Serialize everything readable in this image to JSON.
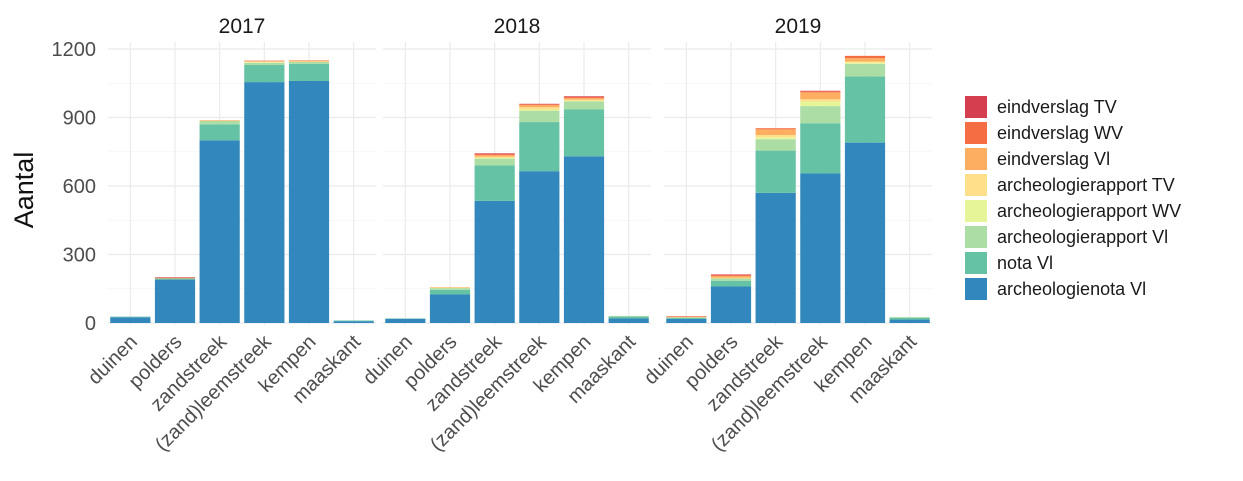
{
  "chart_data": {
    "type": "bar",
    "stacked": true,
    "ylabel": "Aantal",
    "xlabel": "",
    "ylim": [
      0,
      1200
    ],
    "yticks": [
      0,
      300,
      600,
      900,
      1200
    ],
    "grid": true,
    "legend_position": "right",
    "categories": [
      "duinen",
      "polders",
      "zandstreek",
      "(zand)leemstreek",
      "kempen",
      "maaskant"
    ],
    "stack_order": [
      "archeologienota Vl",
      "nota Vl",
      "archeologierapport Vl",
      "archeologierapport WV",
      "archeologierapport TV",
      "eindverslag Vl",
      "eindverslag WV",
      "eindverslag TV"
    ],
    "legend_labels": [
      "eindverslag TV",
      "eindverslag WV",
      "eindverslag Vl",
      "archeologierapport TV",
      "archeologierapport WV",
      "archeologierapport Vl",
      "nota Vl",
      "archeologienota Vl"
    ],
    "colors": {
      "archeologienota Vl": "#3288bd",
      "nota Vl": "#66c2a5",
      "archeologierapport Vl": "#abdda4",
      "archeologierapport WV": "#e6f598",
      "archeologierapport TV": "#fee08b",
      "eindverslag Vl": "#fdae61",
      "eindverslag WV": "#f46d43",
      "eindverslag TV": "#d53e4f"
    },
    "panels": [
      {
        "title": "2017",
        "series": [
          {
            "name": "archeologienota Vl",
            "values": [
              25,
              190,
              800,
              1055,
              1060,
              8
            ]
          },
          {
            "name": "nota Vl",
            "values": [
              3,
              5,
              70,
              75,
              75,
              3
            ]
          },
          {
            "name": "archeologierapport Vl",
            "values": [
              0,
              0,
              15,
              10,
              8,
              0
            ]
          },
          {
            "name": "archeologierapport WV",
            "values": [
              0,
              0,
              0,
              2,
              0,
              0
            ]
          },
          {
            "name": "archeologierapport TV",
            "values": [
              0,
              0,
              0,
              3,
              3,
              0
            ]
          },
          {
            "name": "eindverslag Vl",
            "values": [
              0,
              2,
              3,
              2,
              2,
              0
            ]
          },
          {
            "name": "eindverslag WV",
            "values": [
              0,
              2,
              0,
              2,
              2,
              0
            ]
          },
          {
            "name": "eindverslag TV",
            "values": [
              0,
              1,
              0,
              0,
              0,
              0
            ]
          }
        ]
      },
      {
        "title": "2018",
        "series": [
          {
            "name": "archeologienota Vl",
            "values": [
              18,
              125,
              535,
              665,
              730,
              20
            ]
          },
          {
            "name": "nota Vl",
            "values": [
              2,
              20,
              155,
              215,
              205,
              8
            ]
          },
          {
            "name": "archeologierapport Vl",
            "values": [
              0,
              8,
              30,
              50,
              35,
              3
            ]
          },
          {
            "name": "archeologierapport WV",
            "values": [
              0,
              0,
              3,
              5,
              3,
              0
            ]
          },
          {
            "name": "archeologierapport TV",
            "values": [
              0,
              2,
              5,
              10,
              5,
              0
            ]
          },
          {
            "name": "eindverslag Vl",
            "values": [
              0,
              2,
              7,
              10,
              7,
              0
            ]
          },
          {
            "name": "eindverslag WV",
            "values": [
              0,
              0,
              5,
              3,
              5,
              0
            ]
          },
          {
            "name": "eindverslag TV",
            "values": [
              0,
              0,
              3,
              2,
              3,
              0
            ]
          }
        ]
      },
      {
        "title": "2019",
        "series": [
          {
            "name": "archeologienota Vl",
            "values": [
              18,
              160,
              570,
              655,
              790,
              15
            ]
          },
          {
            "name": "nota Vl",
            "values": [
              5,
              25,
              185,
              220,
              290,
              8
            ]
          },
          {
            "name": "archeologierapport Vl",
            "values": [
              2,
              10,
              50,
              75,
              55,
              3
            ]
          },
          {
            "name": "archeologierapport WV",
            "values": [
              0,
              0,
              8,
              20,
              5,
              0
            ]
          },
          {
            "name": "archeologierapport TV",
            "values": [
              0,
              3,
              10,
              10,
              5,
              0
            ]
          },
          {
            "name": "eindverslag Vl",
            "values": [
              2,
              8,
              25,
              30,
              15,
              0
            ]
          },
          {
            "name": "eindverslag WV",
            "values": [
              3,
              5,
              5,
              5,
              10,
              0
            ]
          },
          {
            "name": "eindverslag TV",
            "values": [
              0,
              2,
              0,
              2,
              0,
              0
            ]
          }
        ]
      }
    ]
  }
}
